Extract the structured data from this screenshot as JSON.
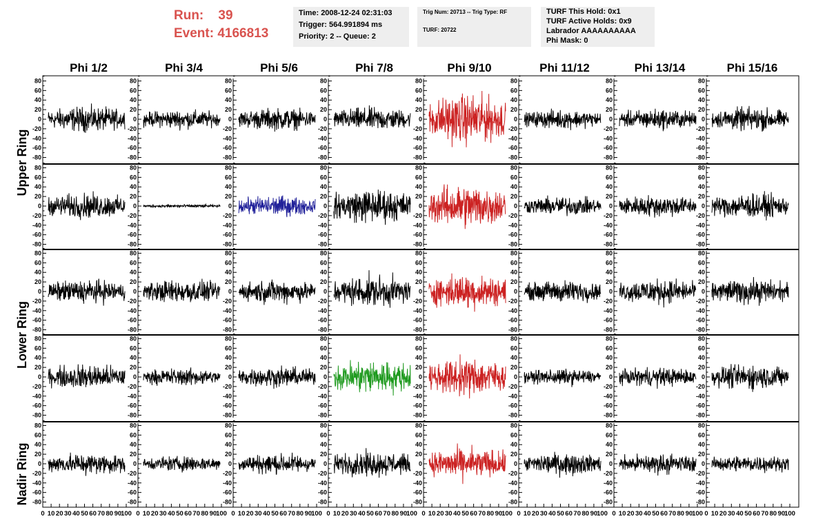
{
  "header": {
    "run_label": "Run:",
    "run_value": "39",
    "event_label": "Event:",
    "event_value": "4166813",
    "time": "Time: 2008-12-24 02:31:03",
    "trigger": "Trigger: 564.991894 ms",
    "priority": "Priority: 2 -- Queue: 2",
    "trig_num": "Trig Num: 20713 -- Trig Type: RF",
    "turf": "TURF: 20722",
    "turf_hold": "TURF This Hold: 0x1",
    "turf_active": "TURF Active Holds: 0x9",
    "labrador": "Labrador AAAAAAAAAA",
    "phi_mask": "Phi Mask: 0"
  },
  "colors": {
    "header_red": "#d9534f",
    "trace_black": "#000000",
    "trace_red": "#cc2222",
    "trace_blue": "#22229a",
    "trace_green": "#1f9a1f",
    "info_bg": "#eeeeee"
  },
  "chart_data": {
    "type": "line",
    "columns": [
      "Phi 1/2",
      "Phi 3/4",
      "Phi 5/6",
      "Phi 7/8",
      "Phi 9/10",
      "Phi 11/12",
      "Phi 13/14",
      "Phi 15/16"
    ],
    "row_labels": [
      "Upper Ring",
      "Lower Ring",
      "Nadir Ring"
    ],
    "ylim": [
      -85,
      85
    ],
    "y_ticks": [
      "-80",
      "-60",
      "-40",
      "-20",
      "0",
      "20",
      "40",
      "60",
      "80"
    ],
    "xlim": [
      0,
      100
    ],
    "x_ticks": [
      "0",
      "10",
      "20",
      "30",
      "40",
      "50",
      "60",
      "70",
      "80",
      "90",
      "100"
    ],
    "panel_amplitude": [
      [
        16,
        12,
        14,
        15,
        32,
        12,
        13,
        15
      ],
      [
        16,
        2,
        13,
        22,
        28,
        12,
        14,
        16
      ],
      [
        15,
        15,
        15,
        20,
        22,
        14,
        16,
        16
      ],
      [
        16,
        11,
        13,
        22,
        24,
        10,
        12,
        16
      ],
      [
        14,
        10,
        13,
        16,
        20,
        14,
        13,
        11
      ]
    ],
    "panel_color": [
      [
        "black",
        "black",
        "black",
        "black",
        "red",
        "black",
        "black",
        "black"
      ],
      [
        "black",
        "black",
        "blue",
        "black",
        "red",
        "black",
        "black",
        "black"
      ],
      [
        "black",
        "black",
        "black",
        "black",
        "red",
        "black",
        "black",
        "black"
      ],
      [
        "black",
        "black",
        "black",
        "green",
        "red",
        "black",
        "black",
        "black"
      ],
      [
        "black",
        "black",
        "black",
        "black",
        "red",
        "black",
        "black",
        "black"
      ]
    ]
  }
}
